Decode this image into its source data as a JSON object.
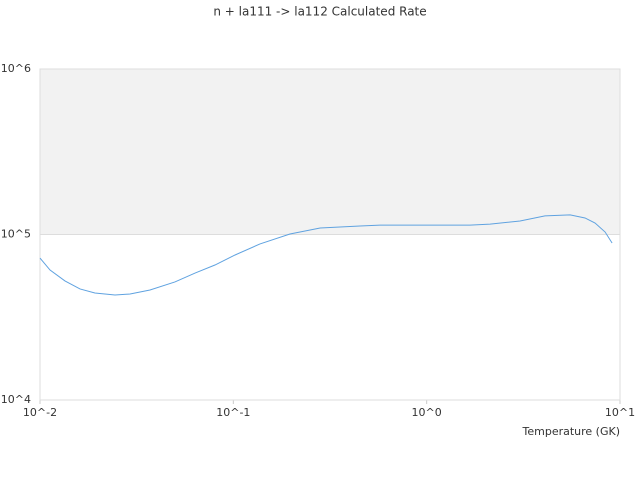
{
  "chart_data": {
    "type": "line",
    "title": "n + la111 -> la112 Calculated Rate",
    "x_label": "Temperature (GK)",
    "log_x": true,
    "log_y": true,
    "grid": true,
    "bands": true,
    "xlim": [
      0.01,
      10
    ],
    "ylim": [
      10000,
      1000000
    ],
    "xticks": [
      {
        "value": 0.01,
        "label": "10^-2"
      },
      {
        "value": 0.1,
        "label": "10^-1"
      },
      {
        "value": 1,
        "label": "10^0"
      },
      {
        "value": 10,
        "label": "10^1"
      }
    ],
    "yticks": [
      {
        "value": 10000,
        "label": "10^4"
      },
      {
        "value": 100000,
        "label": "10^5"
      },
      {
        "value": 1000000,
        "label": "10^6"
      }
    ],
    "series": [
      {
        "color": "#5fa2e0",
        "x": [
          0.01,
          0.01127,
          0.01346,
          0.0161,
          0.01923,
          0.02443,
          0.02924,
          0.03707,
          0.04989,
          0.06339,
          0.08035,
          0.1021,
          0.1374,
          0.1963,
          0.2812,
          0.4519,
          0.5741,
          0.9247,
          1.675,
          2.128,
          3.041,
          4.093,
          5.521,
          6.592,
          7.43,
          8.375,
          9.1
        ],
        "values": [
          72100,
          61000,
          52400,
          46900,
          44300,
          43100,
          43700,
          46200,
          51700,
          58500,
          65400,
          75200,
          87700,
          100700,
          109400,
          112500,
          114000,
          114000,
          114000,
          115600,
          120700,
          129500,
          131300,
          125900,
          117300,
          103500,
          88900
        ]
      }
    ]
  }
}
